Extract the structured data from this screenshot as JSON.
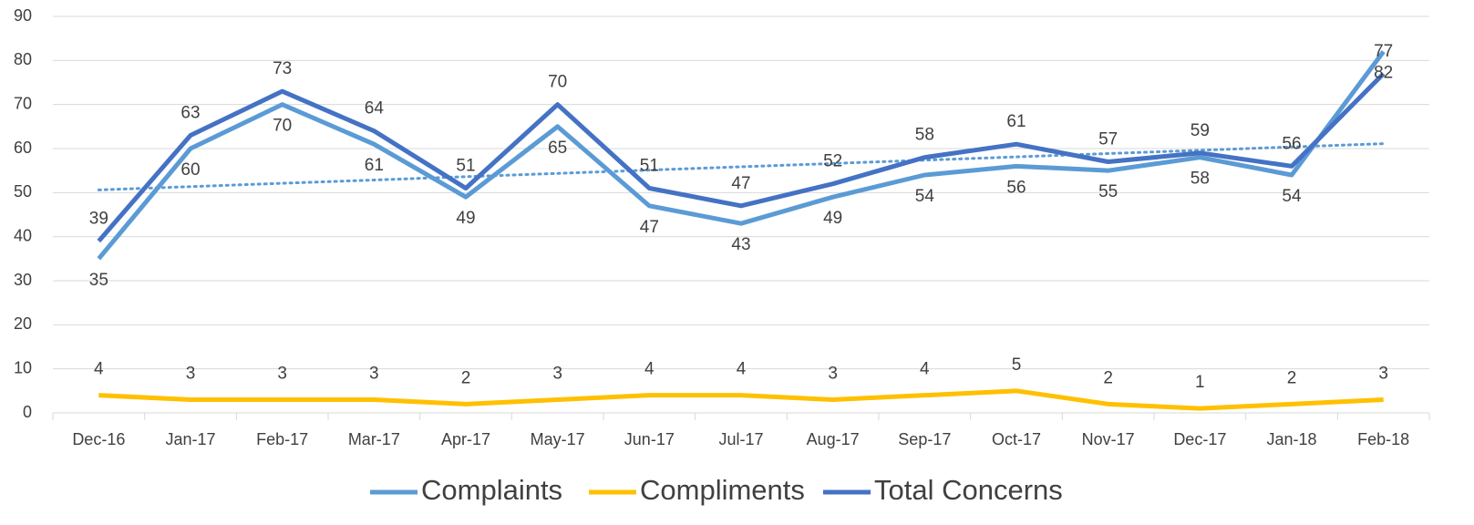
{
  "chart_data": {
    "type": "line",
    "categories": [
      "Dec-16",
      "Jan-17",
      "Feb-17",
      "Mar-17",
      "Apr-17",
      "May-17",
      "Jun-17",
      "Jul-17",
      "Aug-17",
      "Sep-17",
      "Oct-17",
      "Nov-17",
      "Dec-17",
      "Jan-18",
      "Feb-18"
    ],
    "series": [
      {
        "name": "Complaints",
        "color": "#5b9bd5",
        "values": [
          35,
          60,
          70,
          61,
          49,
          65,
          47,
          43,
          49,
          54,
          56,
          55,
          58,
          54,
          82
        ]
      },
      {
        "name": "Compliments",
        "color": "#ffc000",
        "values": [
          4,
          3,
          3,
          3,
          2,
          3,
          4,
          4,
          3,
          4,
          5,
          2,
          1,
          2,
          3
        ]
      },
      {
        "name": "Total Concerns",
        "color": "#4472c4",
        "values": [
          39,
          63,
          73,
          64,
          51,
          70,
          51,
          47,
          52,
          58,
          61,
          57,
          59,
          56,
          77
        ]
      }
    ],
    "trendline": {
      "series": 0,
      "kind": "linear",
      "style": "dotted"
    },
    "ylim": [
      0,
      90
    ],
    "yticks": [
      0,
      10,
      20,
      30,
      40,
      50,
      60,
      70,
      80,
      90
    ],
    "grid": true,
    "legend": "bottom"
  }
}
